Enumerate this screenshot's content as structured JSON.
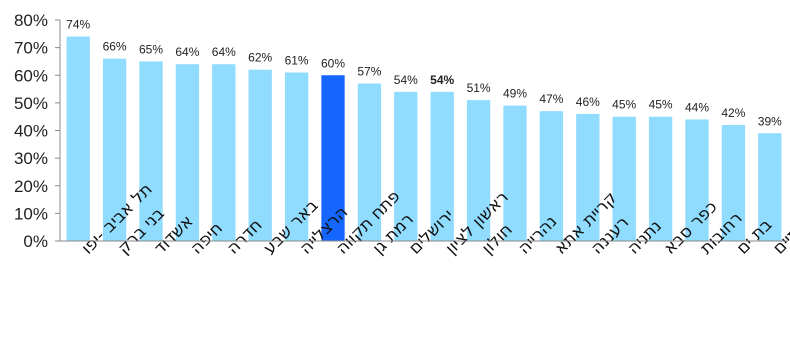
{
  "chart_data": {
    "type": "bar",
    "categories": [
      "תל אביב -יפו",
      "בני ברק",
      "אשדוד",
      "חיפה",
      "חדרה",
      "באר שבע",
      "הרצלייה",
      "פתח תקווה",
      "רמת גן",
      "ירושלים",
      "ראשון לציון",
      "חולון",
      "נהרייה",
      "קריית אתא",
      "רעננה",
      "נתניה",
      "כפר סבא",
      "רחובות",
      "בת ים",
      "גבעתיים"
    ],
    "values": [
      74,
      66,
      65,
      64,
      64,
      62,
      61,
      60,
      57,
      54,
      54,
      51,
      49,
      47,
      46,
      45,
      45,
      44,
      42,
      39
    ],
    "value_labels": [
      "74%",
      "66%",
      "65%",
      "64%",
      "64%",
      "62%",
      "61%",
      "60%",
      "57%",
      "54%",
      "54%",
      "51%",
      "49%",
      "47%",
      "46%",
      "45%",
      "45%",
      "44%",
      "42%",
      "39%"
    ],
    "bold_label_index": 10,
    "highlight_index": 7,
    "ylim": [
      0,
      80
    ],
    "yticks": [
      "0%",
      "10%",
      "20%",
      "30%",
      "40%",
      "50%",
      "60%",
      "70%",
      "80%"
    ],
    "title": "",
    "xlabel": "",
    "ylabel": "",
    "grid": false,
    "colors": {
      "bar": "#8fdcff",
      "highlight": "#1565ff",
      "axis": "#8a8a8a"
    }
  }
}
